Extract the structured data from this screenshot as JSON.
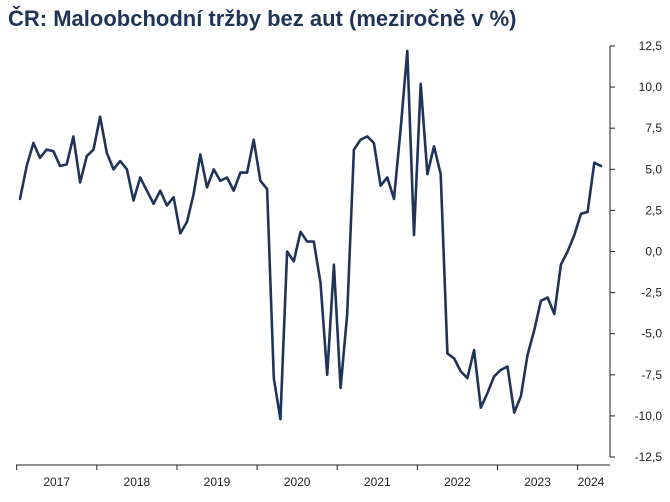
{
  "chart_data": {
    "type": "line",
    "title": "ČR: Maloobchodní tržby bez aut (meziročně v %)",
    "xlabel": "",
    "ylabel": "",
    "ylim": [
      -12.5,
      12.5
    ],
    "y_ticks": [
      "12,5",
      "10,0",
      "7,5",
      "5,0",
      "2,5",
      "0,0",
      "-2,5",
      "-5,0",
      "-7,5",
      "-10,0",
      "-12,5"
    ],
    "x_tick_labels": [
      "2017",
      "2018",
      "2019",
      "2020",
      "2021",
      "2022",
      "2023",
      "2024"
    ],
    "x_start": "2017-01",
    "x_end": "2024-03",
    "grid": false,
    "colors": {
      "line": "#1f3458",
      "axis": "#222222"
    },
    "series": [
      {
        "values": [
          3.2,
          5.2,
          6.6,
          5.7,
          6.2,
          6.1,
          5.2,
          5.3,
          7.0,
          4.2,
          5.8,
          6.2,
          8.2,
          6.0,
          5.0,
          5.5,
          5.0,
          3.1,
          4.5,
          3.7,
          2.9,
          3.7,
          2.8,
          3.3,
          1.1,
          1.8,
          3.5,
          5.9,
          3.9,
          5.0,
          4.3,
          4.5,
          3.7,
          4.8,
          4.8,
          6.8,
          4.3,
          3.8,
          -7.7,
          -10.2,
          0.0,
          -0.6,
          1.2,
          0.6,
          0.6,
          -1.9,
          -7.5,
          -0.8,
          -8.3,
          -3.8,
          6.2,
          6.8,
          7.0,
          6.6,
          4.0,
          4.5,
          3.2,
          7.5,
          12.2,
          1.0,
          10.2,
          4.7,
          6.4,
          4.7,
          -6.2,
          -6.5,
          -7.3,
          -7.7,
          -6.0,
          -9.5,
          -8.6,
          -7.6,
          -7.2,
          -7.0,
          -9.8,
          -8.8,
          -6.3,
          -4.8,
          -3.0,
          -2.8,
          -3.8,
          -0.8,
          0.0,
          1.0,
          2.3,
          2.4,
          5.4,
          5.2
        ]
      }
    ]
  }
}
